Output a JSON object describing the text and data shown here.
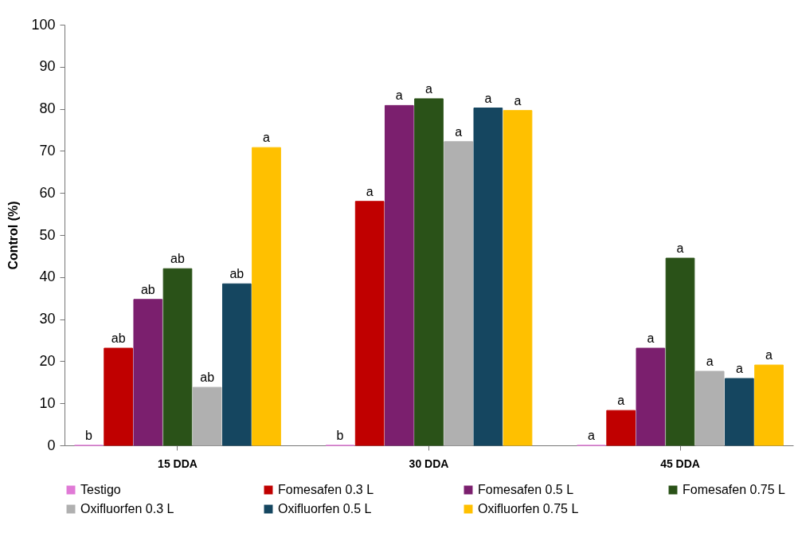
{
  "chart_data": {
    "type": "bar",
    "ylabel": "Control (%)",
    "categories": [
      "15 DDA",
      "30 DDA",
      "45 DDA"
    ],
    "ylim": [
      0,
      100
    ],
    "yticks": [
      0,
      10,
      20,
      30,
      40,
      50,
      60,
      70,
      80,
      90,
      100
    ],
    "grid": false,
    "legend": "bottom",
    "series": [
      {
        "name": "Testigo",
        "color": "#e07ad6",
        "values": [
          0,
          0,
          0
        ],
        "value_labels": [
          "b",
          "b",
          "a"
        ]
      },
      {
        "name": "Fomesafen 0.3 L",
        "color": "#c00000",
        "values": [
          23.1,
          58,
          8.3
        ],
        "value_labels": [
          "ab",
          "a",
          "a"
        ]
      },
      {
        "name": "Fomesafen 0.5 L",
        "color": "#7b1f6e",
        "values": [
          34.7,
          80.8,
          23.1
        ],
        "value_labels": [
          "ab",
          "a",
          "a"
        ]
      },
      {
        "name": "Fomesafen 0.75 L",
        "color": "#2a5218",
        "values": [
          42,
          82.4,
          44.5
        ],
        "value_labels": [
          "ab",
          "a",
          "a"
        ]
      },
      {
        "name": "Oxifluorfen 0.3 L",
        "color": "#b0b0b0",
        "values": [
          13.8,
          72.2,
          17.6
        ],
        "value_labels": [
          "ab",
          "a",
          "a"
        ]
      },
      {
        "name": "Oxifluorfen 0.5 L",
        "color": "#154660",
        "values": [
          38.4,
          80.2,
          15.9
        ],
        "value_labels": [
          "ab",
          "a",
          "a"
        ]
      },
      {
        "name": "Oxifluorfen 0.75 L",
        "color": "#ffc000",
        "values": [
          70.8,
          79.6,
          19.1
        ],
        "value_labels": [
          "a",
          "a",
          "a"
        ]
      }
    ]
  }
}
